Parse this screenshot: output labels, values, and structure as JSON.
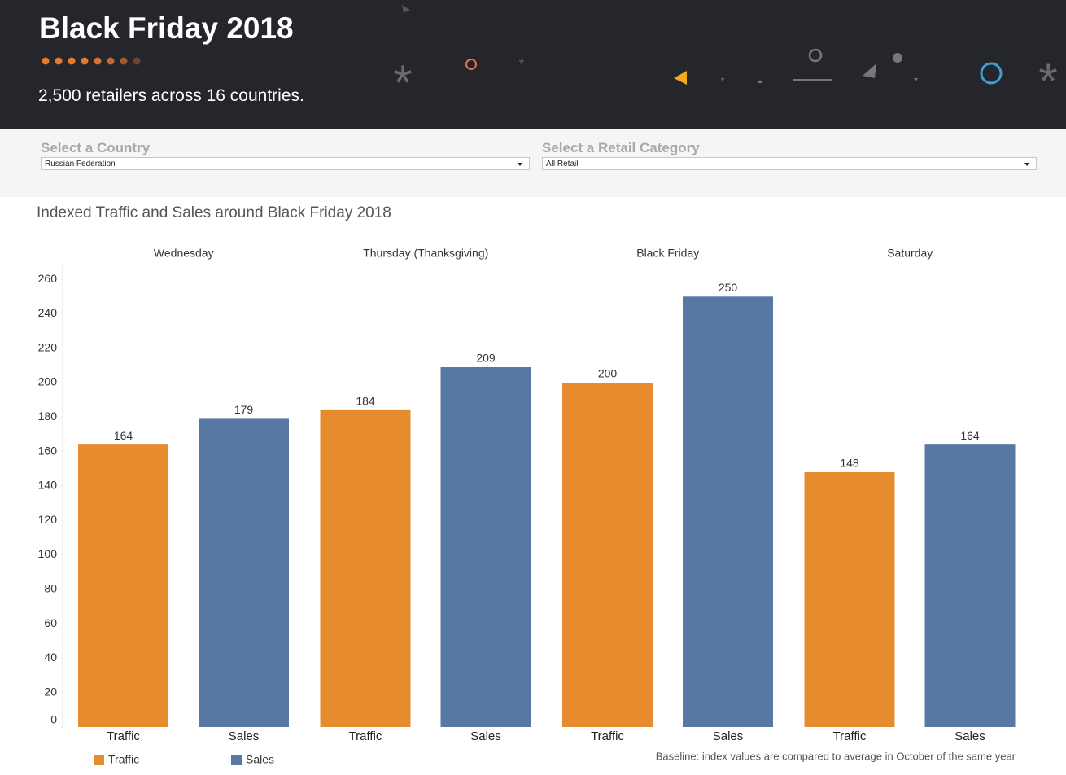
{
  "header": {
    "title": "Black Friday 2018",
    "subtitle": "2,500 retailers across 16 countries."
  },
  "filters": [
    {
      "label": "Select a Country",
      "value": "Russian Federation"
    },
    {
      "label": "Select a Retail Category",
      "value": "All Retail"
    }
  ],
  "chart_data": {
    "type": "bar",
    "title": "Indexed Traffic and Sales around Black Friday 2018",
    "categories": [
      "Wednesday",
      "Thursday (Thanksgiving)",
      "Black Friday",
      "Saturday"
    ],
    "series": [
      {
        "name": "Traffic",
        "color": "#e68c2e",
        "values": [
          164,
          184,
          200,
          148
        ]
      },
      {
        "name": "Sales",
        "color": "#5778a4",
        "values": [
          179,
          209,
          250,
          164
        ]
      }
    ],
    "ylim": [
      0,
      270
    ],
    "yticks": [
      0,
      20,
      40,
      60,
      80,
      100,
      120,
      140,
      160,
      180,
      200,
      220,
      240,
      260
    ],
    "annotation": "Baseline: index values are compared to average in October of the same year"
  }
}
